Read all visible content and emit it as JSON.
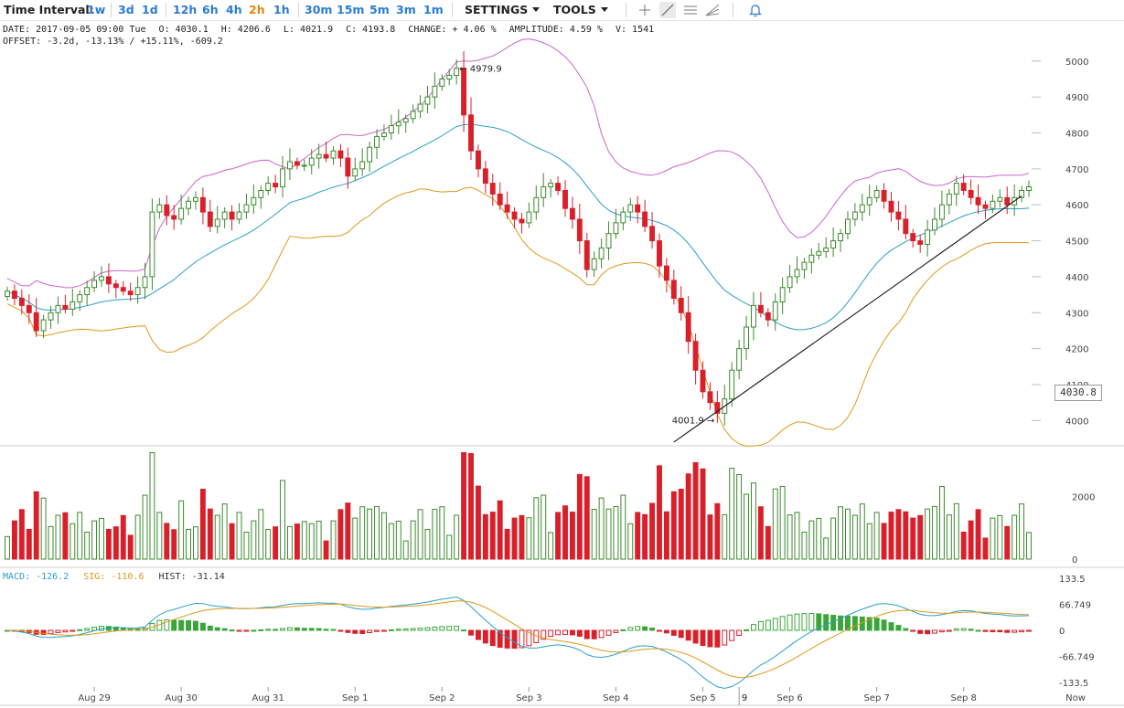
{
  "toolbar": {
    "time_interval_label": "Time Interval:",
    "intervals": [
      "1w",
      "3d",
      "1d",
      "12h",
      "6h",
      "4h",
      "2h",
      "1h",
      "30m",
      "15m",
      "5m",
      "3m",
      "1m"
    ],
    "active_interval": "2h",
    "settings_label": "SETTINGS",
    "tools_label": "TOOLS",
    "tool_icons": [
      "crosshair-icon",
      "trendline-icon",
      "horizontal-lines-icon",
      "fib-fan-icon",
      "alert-bell-icon"
    ]
  },
  "info": {
    "date": "DATE: 2017-09-05 09:00 Tue",
    "open": "O: 4030.1",
    "high": "H: 4206.6",
    "low": "L: 4021.9",
    "close": "C: 4193.8",
    "change": "CHANGE: + 4.06 %",
    "amplitude": "AMPLITUDE: 4.59 %",
    "volume": "V: 1541",
    "offset": "OFFSET: -3.2d, -13.13% / +15.11%, -609.2"
  },
  "macd_info": {
    "macd": "MACD: -126.2",
    "sig": "SIG: -110.6",
    "hist": "HIST: -31.14"
  },
  "colors": {
    "up": "#3d8a2e",
    "down": "#d9202a",
    "upper_band": "#cc66cc",
    "lower_band": "#e0991a",
    "middle_band": "#2b9fc7",
    "macd_line": "#2b9fc7",
    "signal_line": "#e0991a",
    "hist_up": "#3aa63a",
    "hist_down": "#d9202a",
    "toolbar_link": "#2a7bd6",
    "toolbar_active": "#e8820c"
  },
  "chart_data": {
    "type": "candlestick",
    "title": "",
    "price_axis": {
      "ticks": [
        "5000",
        "4900",
        "4800",
        "4700",
        "4600",
        "4500",
        "4400",
        "4300",
        "4200",
        "4100",
        "4000"
      ],
      "range": [
        3950,
        5030
      ]
    },
    "volume_axis": {
      "ticks": [
        "2000",
        "0"
      ],
      "range": [
        0,
        3500
      ]
    },
    "macd_axis": {
      "ticks": [
        "133.5",
        "66.749",
        "0",
        "-66.749",
        "-133.5"
      ],
      "range": [
        -145,
        145
      ]
    },
    "x_labels": [
      "Aug 29",
      "Aug 30",
      "Aug 31",
      "Sep 1",
      "Sep 2",
      "Sep 3",
      "Sep 4",
      "Sep 5",
      "Sep 6",
      "Sep 7",
      "Sep 8"
    ],
    "x_label_positions": [
      12,
      24,
      36,
      48,
      60,
      72,
      84,
      96,
      108,
      120,
      132
    ],
    "marker_label": "9",
    "marker_index": 101,
    "now_label": "Now",
    "current_price": "4030.8",
    "annotations": {
      "high_label": "← 4979.9",
      "high_index": 62,
      "high_value": 4979.9,
      "low_label": "4001.9 →",
      "low_index": 98,
      "low_value": 4001.9
    },
    "trendline": [
      [
        92,
        3940
      ],
      [
        140,
        4625
      ]
    ],
    "overlays": [
      "Bollinger upper",
      "Bollinger middle",
      "Bollinger lower"
    ],
    "closes": [
      4360,
      4340,
      4320,
      4300,
      4250,
      4280,
      4300,
      4320,
      4310,
      4330,
      4350,
      4370,
      4390,
      4400,
      4380,
      4370,
      4360,
      4350,
      4370,
      4400,
      4580,
      4600,
      4570,
      4560,
      4590,
      4610,
      4620,
      4580,
      4540,
      4560,
      4580,
      4560,
      4580,
      4600,
      4620,
      4640,
      4660,
      4650,
      4700,
      4720,
      4710,
      4710,
      4730,
      4740,
      4730,
      4750,
      4730,
      4680,
      4700,
      4720,
      4760,
      4790,
      4800,
      4820,
      4830,
      4840,
      4860,
      4880,
      4900,
      4930,
      4950,
      4960,
      4980,
      4850,
      4750,
      4700,
      4660,
      4630,
      4600,
      4580,
      4560,
      4550,
      4580,
      4620,
      4650,
      4660,
      4640,
      4590,
      4560,
      4500,
      4420,
      4450,
      4480,
      4520,
      4550,
      4580,
      4600,
      4580,
      4540,
      4500,
      4430,
      4390,
      4340,
      4300,
      4220,
      4140,
      4080,
      4050,
      4020,
      4060,
      4140,
      4200,
      4260,
      4320,
      4300,
      4280,
      4330,
      4370,
      4400,
      4420,
      4440,
      4460,
      4470,
      4480,
      4500,
      4520,
      4560,
      4580,
      4600,
      4620,
      4640,
      4610,
      4580,
      4560,
      4520,
      4500,
      4490,
      4530,
      4560,
      4600,
      4630,
      4660,
      4640,
      4620,
      4600,
      4590,
      4610,
      4620,
      4600,
      4620,
      4640,
      4650
    ]
  }
}
